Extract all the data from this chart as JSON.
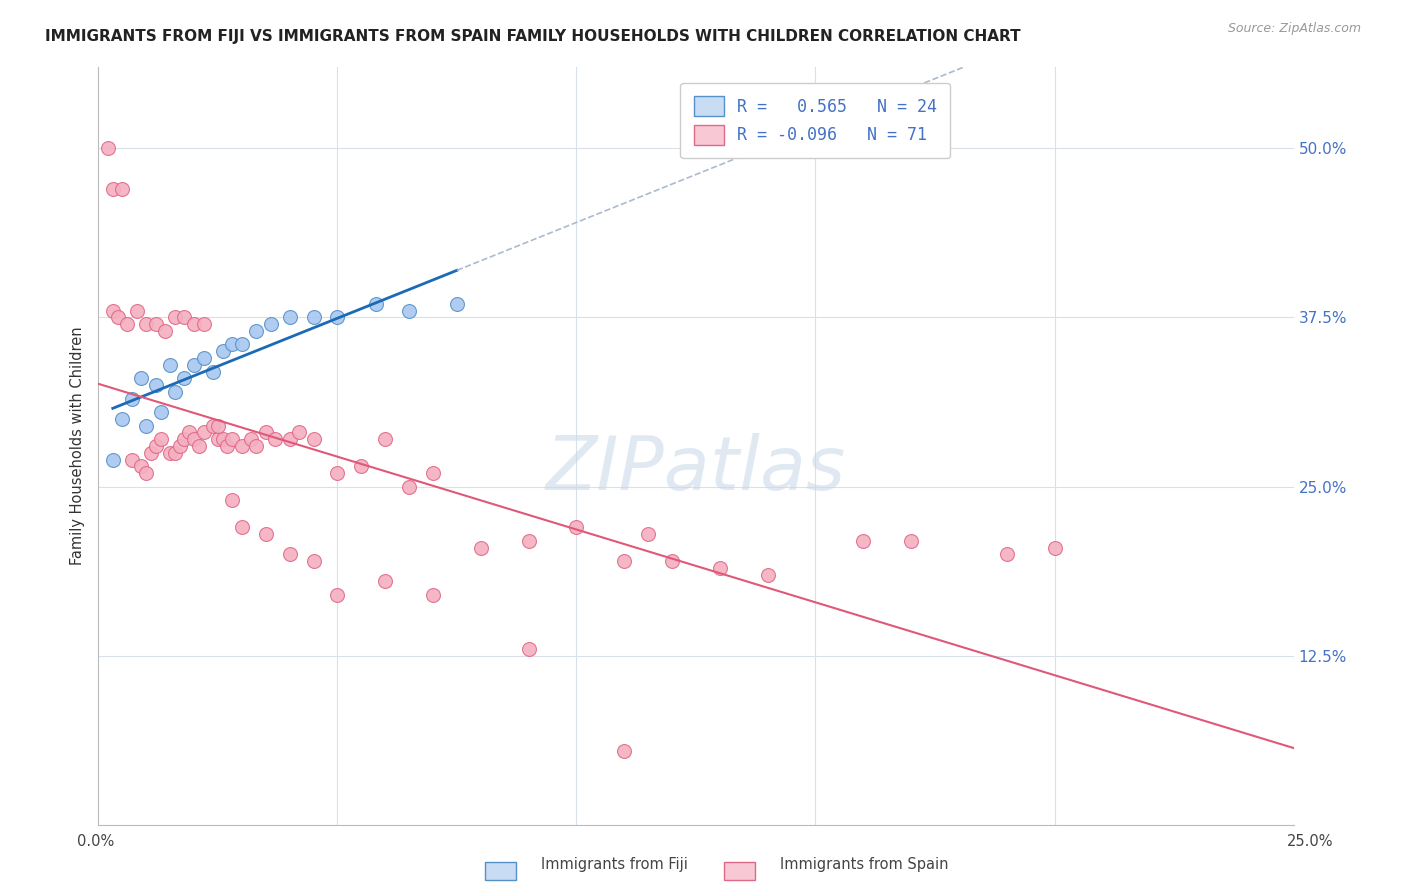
{
  "title": "IMMIGRANTS FROM FIJI VS IMMIGRANTS FROM SPAIN FAMILY HOUSEHOLDS WITH CHILDREN CORRELATION CHART",
  "source": "Source: ZipAtlas.com",
  "ylabel": "Family Households with Children",
  "fiji_R": 0.565,
  "fiji_N": 24,
  "spain_R": -0.096,
  "spain_N": 71,
  "fiji_color": "#a8c8f0",
  "fiji_edge_color": "#5590c8",
  "spain_color": "#f4b0c0",
  "spain_edge_color": "#e06888",
  "fiji_line_color": "#1a6ab5",
  "spain_line_color": "#e05878",
  "dashed_line_color": "#aabbd0",
  "legend_fiji_fill": "#c8dcf4",
  "legend_spain_fill": "#f8c8d4",
  "text_blue": "#4472c4",
  "watermark_color": "#c8d8e8",
  "background_color": "#ffffff",
  "grid_color": "#d8e0ea",
  "xlim": [
    0.0,
    0.25
  ],
  "ylim": [
    0.0,
    0.56
  ],
  "ytick_values": [
    0.0,
    0.125,
    0.25,
    0.375,
    0.5
  ],
  "ytick_labels": [
    "",
    "12.5%",
    "25.0%",
    "37.5%",
    "50.0%"
  ],
  "xtick_values": [
    0.0,
    0.05,
    0.1,
    0.15,
    0.2,
    0.25
  ],
  "marker_size": 100,
  "fiji_points_x": [
    0.003,
    0.005,
    0.007,
    0.009,
    0.01,
    0.012,
    0.013,
    0.015,
    0.016,
    0.018,
    0.02,
    0.022,
    0.024,
    0.026,
    0.028,
    0.03,
    0.033,
    0.036,
    0.04,
    0.045,
    0.05,
    0.058,
    0.065,
    0.075
  ],
  "fiji_points_y": [
    0.27,
    0.3,
    0.315,
    0.33,
    0.295,
    0.325,
    0.305,
    0.34,
    0.32,
    0.33,
    0.34,
    0.345,
    0.335,
    0.35,
    0.355,
    0.355,
    0.365,
    0.37,
    0.375,
    0.375,
    0.375,
    0.385,
    0.38,
    0.385
  ],
  "spain_points_x": [
    0.002,
    0.003,
    0.005,
    0.007,
    0.009,
    0.01,
    0.011,
    0.012,
    0.013,
    0.015,
    0.016,
    0.017,
    0.018,
    0.019,
    0.02,
    0.021,
    0.022,
    0.024,
    0.025,
    0.026,
    0.027,
    0.028,
    0.03,
    0.032,
    0.033,
    0.035,
    0.037,
    0.04,
    0.042,
    0.045,
    0.05,
    0.055,
    0.06,
    0.065,
    0.07,
    0.08,
    0.09,
    0.1,
    0.11,
    0.115,
    0.12,
    0.13,
    0.14,
    0.16,
    0.17,
    0.19,
    0.2,
    0.003,
    0.004,
    0.006,
    0.008,
    0.01,
    0.012,
    0.014,
    0.016,
    0.018,
    0.02,
    0.022,
    0.025,
    0.028,
    0.03,
    0.035,
    0.04,
    0.045,
    0.05,
    0.06,
    0.07,
    0.09,
    0.11
  ],
  "spain_points_y": [
    0.5,
    0.47,
    0.47,
    0.27,
    0.265,
    0.26,
    0.275,
    0.28,
    0.285,
    0.275,
    0.275,
    0.28,
    0.285,
    0.29,
    0.285,
    0.28,
    0.29,
    0.295,
    0.285,
    0.285,
    0.28,
    0.285,
    0.28,
    0.285,
    0.28,
    0.29,
    0.285,
    0.285,
    0.29,
    0.285,
    0.26,
    0.265,
    0.285,
    0.25,
    0.26,
    0.205,
    0.21,
    0.22,
    0.195,
    0.215,
    0.195,
    0.19,
    0.185,
    0.21,
    0.21,
    0.2,
    0.205,
    0.38,
    0.375,
    0.37,
    0.38,
    0.37,
    0.37,
    0.365,
    0.375,
    0.375,
    0.37,
    0.37,
    0.295,
    0.24,
    0.22,
    0.215,
    0.2,
    0.195,
    0.17,
    0.18,
    0.17,
    0.13,
    0.055
  ]
}
